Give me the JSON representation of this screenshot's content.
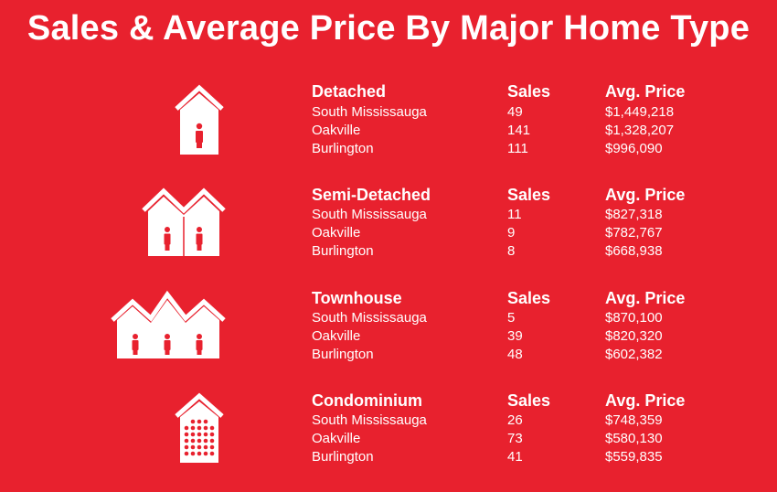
{
  "title": "Sales & Average Price By Major Home Type",
  "columns": {
    "sales": "Sales",
    "price": "Avg. Price"
  },
  "sections": [
    {
      "type": "Detached",
      "icon": "detached-house-icon",
      "rows": [
        {
          "area": "South Mississauga",
          "sales": "49",
          "price": "$1,449,218"
        },
        {
          "area": "Oakville",
          "sales": "141",
          "price": "$1,328,207"
        },
        {
          "area": "Burlington",
          "sales": "111",
          "price": "$996,090"
        }
      ]
    },
    {
      "type": "Semi-Detached",
      "icon": "semi-detached-house-icon",
      "rows": [
        {
          "area": "South Mississauga",
          "sales": "11",
          "price": "$827,318"
        },
        {
          "area": "Oakville",
          "sales": "9",
          "price": "$782,767"
        },
        {
          "area": "Burlington",
          "sales": "8",
          "price": "$668,938"
        }
      ]
    },
    {
      "type": "Townhouse",
      "icon": "townhouse-icon",
      "rows": [
        {
          "area": "South Mississauga",
          "sales": "5",
          "price": "$870,100"
        },
        {
          "area": "Oakville",
          "sales": "39",
          "price": "$820,320"
        },
        {
          "area": "Burlington",
          "sales": "48",
          "price": "$602,382"
        }
      ]
    },
    {
      "type": "Condominium",
      "icon": "condominium-building-icon",
      "rows": [
        {
          "area": "South Mississauga",
          "sales": "26",
          "price": "$748,359"
        },
        {
          "area": "Oakville",
          "sales": "73",
          "price": "$580,130"
        },
        {
          "area": "Burlington",
          "sales": "41",
          "price": "$559,835"
        }
      ]
    }
  ]
}
